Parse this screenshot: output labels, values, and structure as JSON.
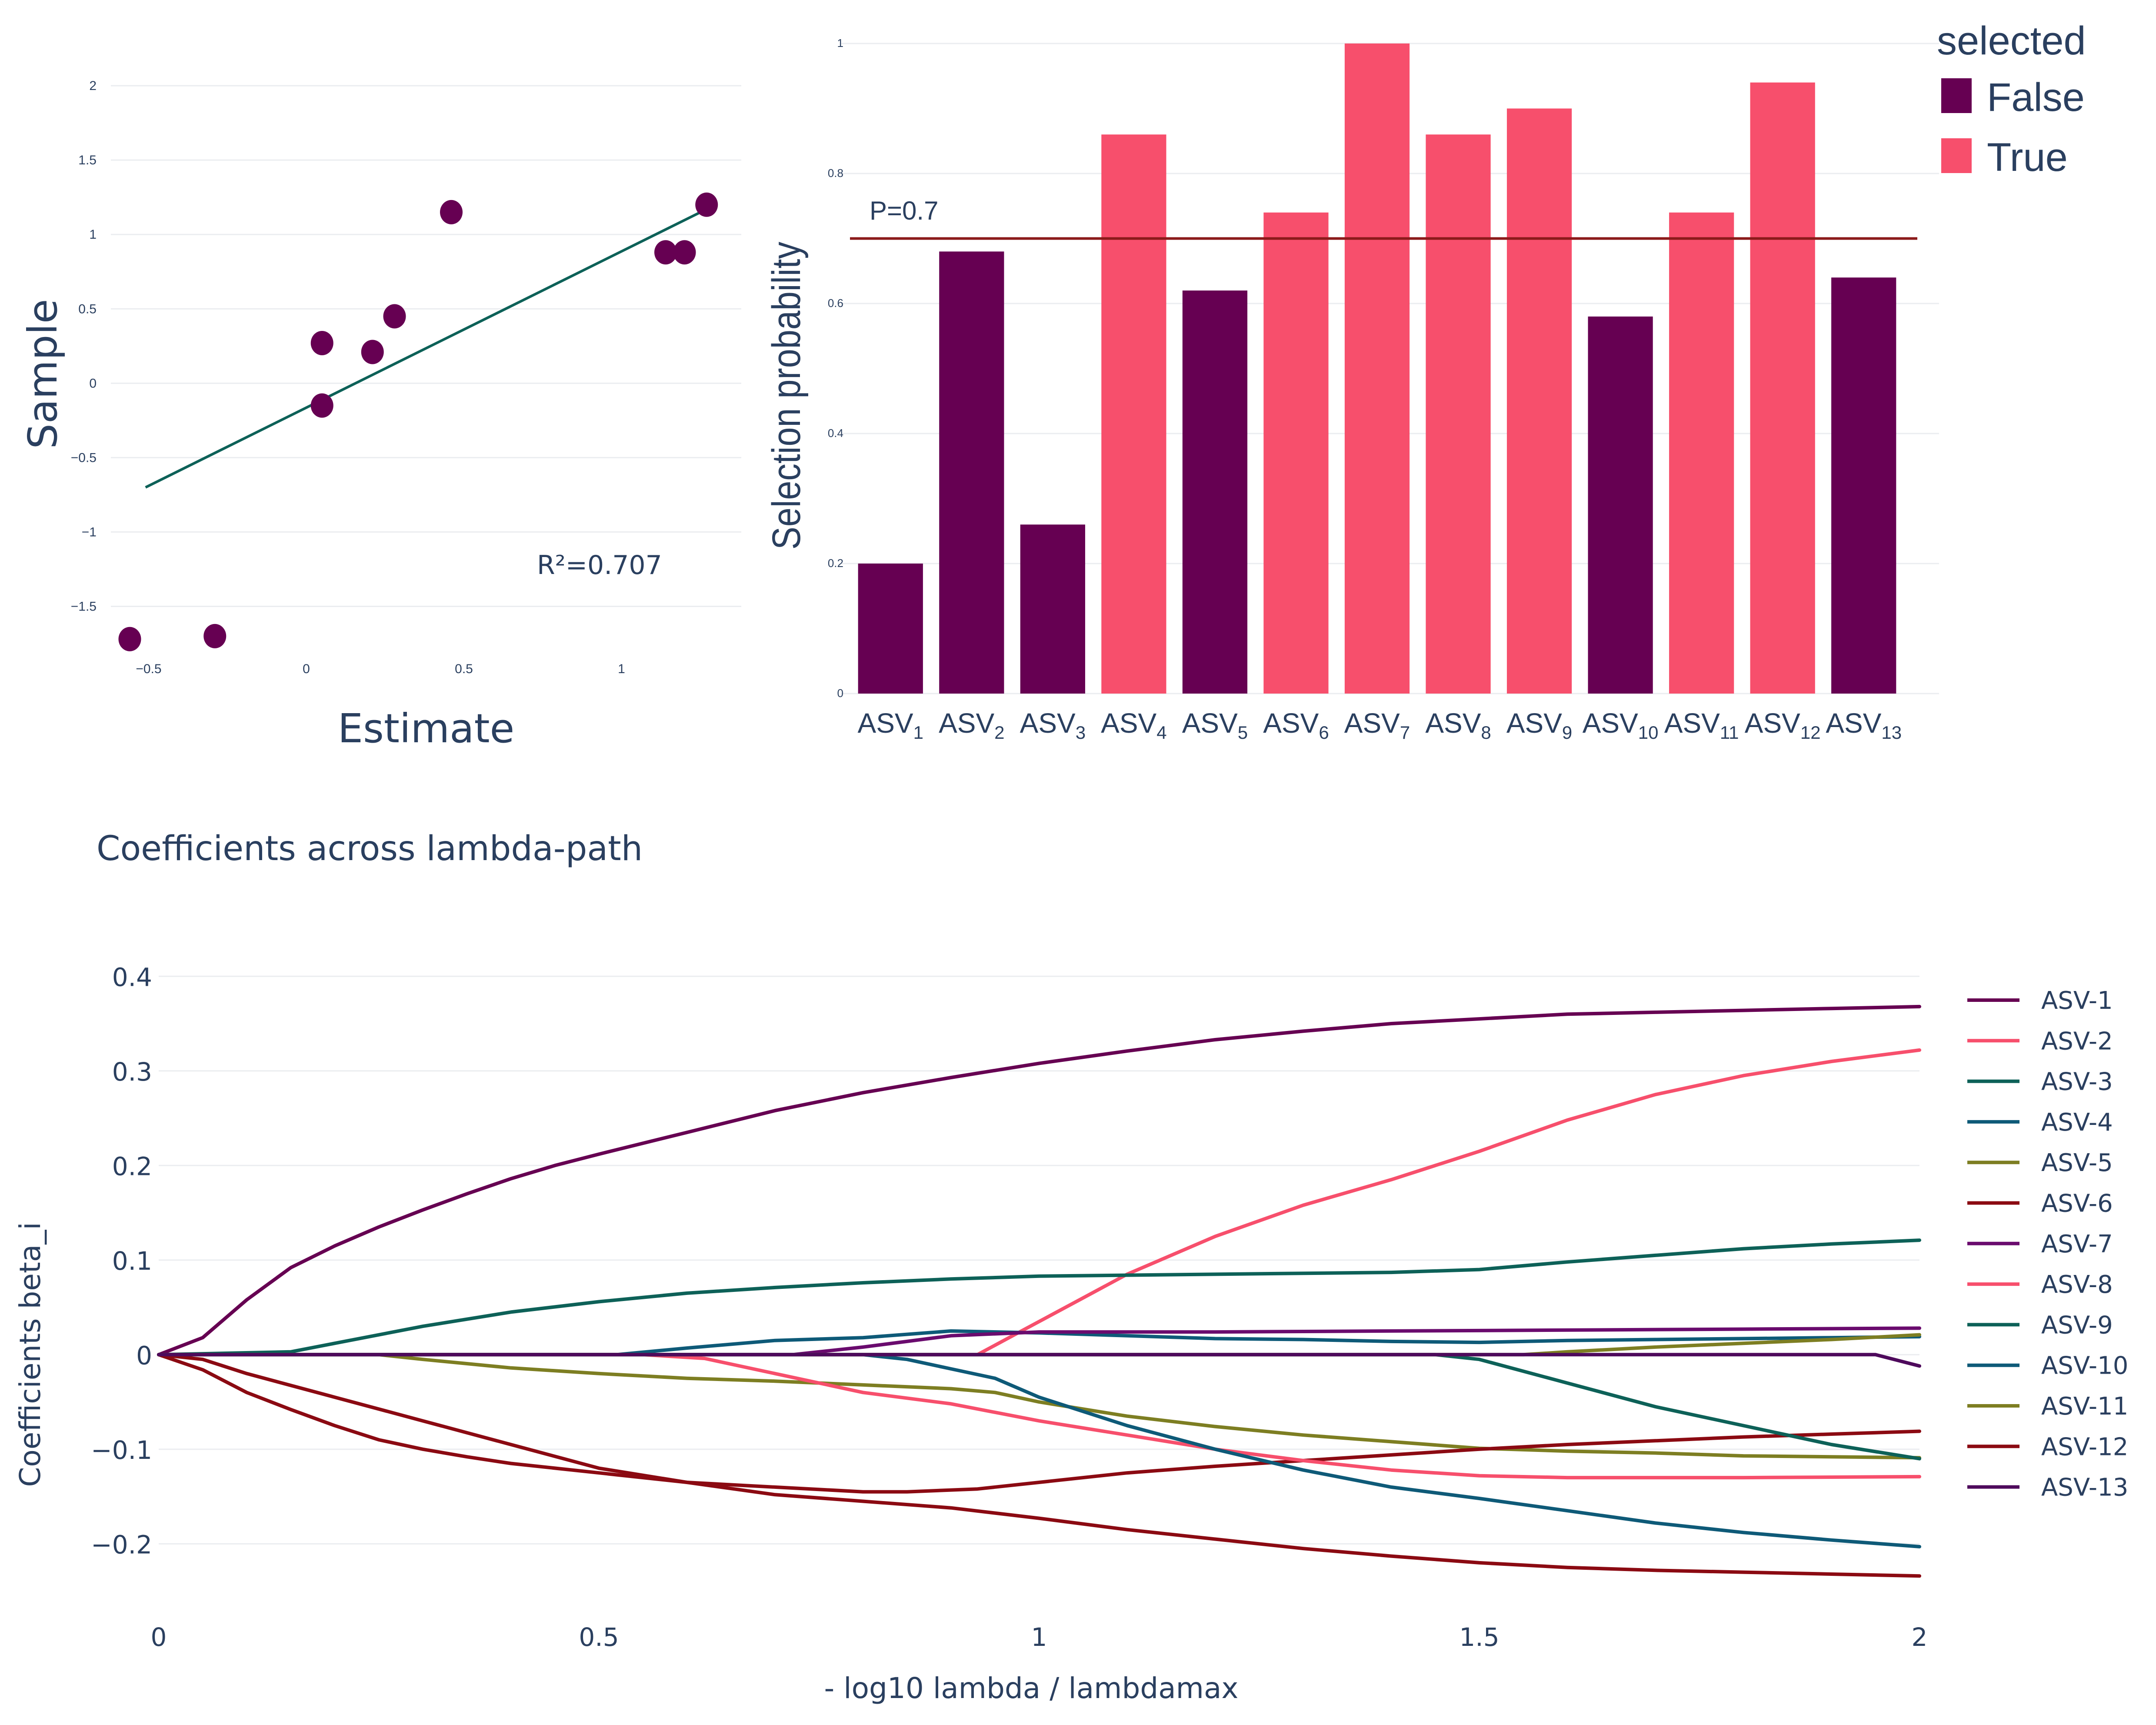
{
  "colors": {
    "purple": "#660052",
    "pink": "#f74f6c",
    "regression": "#0d6158",
    "threshold": "#8b1a1a",
    "text": "#2a3f5f",
    "grid": "#ebedf0"
  },
  "chart_data": [
    {
      "type": "scatter",
      "xlabel": "Estimate",
      "ylabel": "Sample",
      "xlim": [
        -0.62,
        1.38
      ],
      "ylim": [
        -1.75,
        2.05
      ],
      "x_ticks": [
        "−0.5",
        "0",
        "0.5",
        "1"
      ],
      "x_tick_values": [
        -0.5,
        0,
        0.5,
        1
      ],
      "y_ticks": [
        "−1.5",
        "−1",
        "−0.5",
        "0",
        "0.5",
        "1",
        "1.5",
        "2"
      ],
      "y_tick_values": [
        -1.5,
        -1,
        -0.5,
        0,
        0.5,
        1,
        1.5,
        2
      ],
      "points": [
        {
          "x": -0.56,
          "y": -1.72
        },
        {
          "x": -0.29,
          "y": -1.7
        },
        {
          "x": 0.05,
          "y": -0.15
        },
        {
          "x": 0.05,
          "y": 0.27
        },
        {
          "x": 0.21,
          "y": 0.21
        },
        {
          "x": 0.28,
          "y": 0.45
        },
        {
          "x": 0.46,
          "y": 1.15
        },
        {
          "x": 1.14,
          "y": 0.88
        },
        {
          "x": 1.2,
          "y": 0.88
        },
        {
          "x": 1.27,
          "y": 1.2
        }
      ],
      "fit_line": [
        {
          "x": -0.51,
          "y": -0.7
        },
        {
          "x": 1.27,
          "y": 1.17
        }
      ],
      "annotation": "R²=0.707"
    },
    {
      "type": "bar",
      "ylabel": "Selection probability",
      "ylim": [
        0,
        1
      ],
      "y_ticks": [
        "0",
        "0.2",
        "0.4",
        "0.6",
        "0.8",
        "1"
      ],
      "y_tick_values": [
        0,
        0.2,
        0.4,
        0.6,
        0.8,
        1
      ],
      "categories": [
        {
          "base": "ASV",
          "sub": "1"
        },
        {
          "base": "ASV",
          "sub": "2"
        },
        {
          "base": "ASV",
          "sub": "3"
        },
        {
          "base": "ASV",
          "sub": "4"
        },
        {
          "base": "ASV",
          "sub": "5"
        },
        {
          "base": "ASV",
          "sub": "6"
        },
        {
          "base": "ASV",
          "sub": "7"
        },
        {
          "base": "ASV",
          "sub": "8"
        },
        {
          "base": "ASV",
          "sub": "9"
        },
        {
          "base": "ASV",
          "sub": "10"
        },
        {
          "base": "ASV",
          "sub": "11"
        },
        {
          "base": "ASV",
          "sub": "12"
        },
        {
          "base": "ASV",
          "sub": "13"
        }
      ],
      "values": [
        0.2,
        0.68,
        0.26,
        0.86,
        0.62,
        0.74,
        1.0,
        0.86,
        0.9,
        0.58,
        0.74,
        0.94,
        0.64
      ],
      "selected": [
        false,
        false,
        false,
        true,
        false,
        true,
        true,
        true,
        true,
        false,
        true,
        true,
        false
      ],
      "threshold": 0.7,
      "threshold_label": "P=0.7",
      "legend": {
        "title": "selected",
        "placement": "top-right",
        "items": [
          {
            "label": "False",
            "color": "#660052"
          },
          {
            "label": "True",
            "color": "#f74f6c"
          }
        ]
      }
    },
    {
      "type": "line",
      "title": "Coefficients across lambda-path",
      "xlabel": "- log10 lambda / lambdamax",
      "ylabel": "Coefficients beta_i",
      "xlim": [
        0,
        2
      ],
      "ylim": [
        -0.255,
        0.43
      ],
      "x_ticks": [
        "0",
        "0.5",
        "1",
        "1.5",
        "2"
      ],
      "x_tick_values": [
        0,
        0.5,
        1,
        1.5,
        2
      ],
      "y_ticks": [
        "−0.2",
        "−0.1",
        "0",
        "0.1",
        "0.2",
        "0.3",
        "0.4"
      ],
      "y_tick_values": [
        -0.2,
        -0.1,
        0,
        0.1,
        0.2,
        0.3,
        0.4
      ],
      "legend_placement": "right",
      "series": [
        {
          "name": "ASV-1",
          "color": "#660052",
          "points": [
            [
              0,
              0
            ],
            [
              0.05,
              0.018
            ],
            [
              0.1,
              0.058
            ],
            [
              0.15,
              0.092
            ],
            [
              0.2,
              0.115
            ],
            [
              0.25,
              0.135
            ],
            [
              0.3,
              0.153
            ],
            [
              0.35,
              0.17
            ],
            [
              0.4,
              0.186
            ],
            [
              0.45,
              0.2
            ],
            [
              0.5,
              0.212
            ],
            [
              0.6,
              0.235
            ],
            [
              0.7,
              0.258
            ],
            [
              0.8,
              0.277
            ],
            [
              0.9,
              0.293
            ],
            [
              1.0,
              0.308
            ],
            [
              1.1,
              0.321
            ],
            [
              1.2,
              0.333
            ],
            [
              1.3,
              0.342
            ],
            [
              1.4,
              0.35
            ],
            [
              1.5,
              0.355
            ],
            [
              1.6,
              0.36
            ],
            [
              1.7,
              0.362
            ],
            [
              1.8,
              0.364
            ],
            [
              1.9,
              0.366
            ],
            [
              2.0,
              0.368
            ]
          ]
        },
        {
          "name": "ASV-2",
          "color": "#f74f6c",
          "points": [
            [
              0,
              0
            ],
            [
              0.93,
              0
            ],
            [
              0.98,
              0.025
            ],
            [
              1.05,
              0.06
            ],
            [
              1.1,
              0.085
            ],
            [
              1.2,
              0.125
            ],
            [
              1.3,
              0.158
            ],
            [
              1.4,
              0.185
            ],
            [
              1.5,
              0.215
            ],
            [
              1.6,
              0.248
            ],
            [
              1.7,
              0.275
            ],
            [
              1.8,
              0.295
            ],
            [
              1.9,
              0.31
            ],
            [
              2.0,
              0.322
            ]
          ]
        },
        {
          "name": "ASV-3",
          "color": "#0d6158",
          "points": [
            [
              0,
              0
            ],
            [
              0.15,
              0.003
            ],
            [
              0.2,
              0.012
            ],
            [
              0.3,
              0.03
            ],
            [
              0.4,
              0.045
            ],
            [
              0.5,
              0.056
            ],
            [
              0.6,
              0.065
            ],
            [
              0.7,
              0.071
            ],
            [
              0.8,
              0.076
            ],
            [
              0.9,
              0.08
            ],
            [
              1.0,
              0.083
            ],
            [
              1.2,
              0.085
            ],
            [
              1.4,
              0.087
            ],
            [
              1.5,
              0.09
            ],
            [
              1.6,
              0.098
            ],
            [
              1.7,
              0.105
            ],
            [
              1.8,
              0.112
            ],
            [
              1.9,
              0.117
            ],
            [
              2.0,
              0.121
            ]
          ]
        },
        {
          "name": "ASV-4",
          "color": "#0e5a78",
          "points": [
            [
              0,
              0
            ],
            [
              0.52,
              0
            ],
            [
              0.6,
              0.007
            ],
            [
              0.7,
              0.015
            ],
            [
              0.8,
              0.018
            ],
            [
              0.9,
              0.025
            ],
            [
              1.0,
              0.023
            ],
            [
              1.1,
              0.02
            ],
            [
              1.2,
              0.017
            ],
            [
              1.3,
              0.016
            ],
            [
              1.4,
              0.014
            ],
            [
              1.5,
              0.013
            ],
            [
              1.6,
              0.015
            ],
            [
              1.7,
              0.016
            ],
            [
              1.8,
              0.017
            ],
            [
              1.9,
              0.018
            ],
            [
              2.0,
              0.019
            ]
          ]
        },
        {
          "name": "ASV-5",
          "color": "#7d7e22",
          "points": [
            [
              0,
              0
            ],
            [
              0.25,
              0
            ],
            [
              0.3,
              -0.005
            ],
            [
              0.4,
              -0.014
            ],
            [
              0.5,
              -0.02
            ],
            [
              0.6,
              -0.025
            ],
            [
              0.7,
              -0.028
            ],
            [
              0.8,
              -0.032
            ],
            [
              0.9,
              -0.036
            ],
            [
              0.95,
              -0.04
            ],
            [
              1.0,
              -0.05
            ],
            [
              1.1,
              -0.065
            ],
            [
              1.2,
              -0.076
            ],
            [
              1.3,
              -0.085
            ],
            [
              1.4,
              -0.092
            ],
            [
              1.5,
              -0.099
            ],
            [
              1.6,
              -0.102
            ],
            [
              1.7,
              -0.104
            ],
            [
              1.8,
              -0.107
            ],
            [
              1.9,
              -0.108
            ],
            [
              2.0,
              -0.109
            ]
          ]
        },
        {
          "name": "ASV-6",
          "color": "#8b0a12",
          "points": [
            [
              0,
              0
            ],
            [
              0.05,
              -0.016
            ],
            [
              0.1,
              -0.04
            ],
            [
              0.15,
              -0.058
            ],
            [
              0.2,
              -0.075
            ],
            [
              0.25,
              -0.09
            ],
            [
              0.3,
              -0.1
            ],
            [
              0.35,
              -0.108
            ],
            [
              0.4,
              -0.115
            ],
            [
              0.5,
              -0.125
            ],
            [
              0.6,
              -0.135
            ],
            [
              0.7,
              -0.14
            ],
            [
              0.8,
              -0.145
            ],
            [
              0.85,
              -0.145
            ],
            [
              0.93,
              -0.142
            ],
            [
              1.0,
              -0.135
            ],
            [
              1.1,
              -0.125
            ],
            [
              1.2,
              -0.118
            ],
            [
              1.3,
              -0.112
            ],
            [
              1.4,
              -0.106
            ],
            [
              1.5,
              -0.1
            ],
            [
              1.6,
              -0.095
            ],
            [
              1.7,
              -0.091
            ],
            [
              1.8,
              -0.087
            ],
            [
              1.9,
              -0.084
            ],
            [
              2.0,
              -0.081
            ]
          ]
        },
        {
          "name": "ASV-7",
          "color": "#6a0b6e",
          "points": [
            [
              0,
              0
            ],
            [
              0.72,
              0
            ],
            [
              0.8,
              0.008
            ],
            [
              0.9,
              0.02
            ],
            [
              1.0,
              0.024
            ],
            [
              1.2,
              0.024
            ],
            [
              1.4,
              0.025
            ],
            [
              1.6,
              0.026
            ],
            [
              1.8,
              0.027
            ],
            [
              2.0,
              0.028
            ]
          ]
        },
        {
          "name": "ASV-8",
          "color": "#f74f6c",
          "points": [
            [
              0,
              0
            ],
            [
              0.55,
              0
            ],
            [
              0.62,
              -0.004
            ],
            [
              0.7,
              -0.02
            ],
            [
              0.8,
              -0.04
            ],
            [
              0.9,
              -0.052
            ],
            [
              1.0,
              -0.07
            ],
            [
              1.1,
              -0.085
            ],
            [
              1.2,
              -0.1
            ],
            [
              1.3,
              -0.112
            ],
            [
              1.4,
              -0.122
            ],
            [
              1.5,
              -0.128
            ],
            [
              1.6,
              -0.13
            ],
            [
              1.8,
              -0.13
            ],
            [
              2.0,
              -0.129
            ]
          ]
        },
        {
          "name": "ASV-9",
          "color": "#0d6158",
          "points": [
            [
              0,
              0
            ],
            [
              1.45,
              0
            ],
            [
              1.5,
              -0.005
            ],
            [
              1.6,
              -0.03
            ],
            [
              1.7,
              -0.055
            ],
            [
              1.8,
              -0.075
            ],
            [
              1.9,
              -0.095
            ],
            [
              2.0,
              -0.11
            ]
          ]
        },
        {
          "name": "ASV-10",
          "color": "#0e5a78",
          "points": [
            [
              0,
              0
            ],
            [
              0.8,
              0
            ],
            [
              0.85,
              -0.005
            ],
            [
              0.9,
              -0.015
            ],
            [
              0.95,
              -0.025
            ],
            [
              1.0,
              -0.045
            ],
            [
              1.1,
              -0.075
            ],
            [
              1.2,
              -0.1
            ],
            [
              1.3,
              -0.122
            ],
            [
              1.4,
              -0.14
            ],
            [
              1.5,
              -0.152
            ],
            [
              1.6,
              -0.165
            ],
            [
              1.7,
              -0.178
            ],
            [
              1.8,
              -0.188
            ],
            [
              1.9,
              -0.196
            ],
            [
              2.0,
              -0.203
            ]
          ]
        },
        {
          "name": "ASV-11",
          "color": "#7d7e22",
          "points": [
            [
              0,
              0
            ],
            [
              1.55,
              0
            ],
            [
              1.6,
              0.003
            ],
            [
              1.7,
              0.008
            ],
            [
              1.8,
              0.012
            ],
            [
              1.9,
              0.016
            ],
            [
              2.0,
              0.021
            ]
          ]
        },
        {
          "name": "ASV-12",
          "color": "#8b0a12",
          "points": [
            [
              0,
              0
            ],
            [
              0.05,
              -0.005
            ],
            [
              0.1,
              -0.02
            ],
            [
              0.2,
              -0.045
            ],
            [
              0.3,
              -0.07
            ],
            [
              0.4,
              -0.095
            ],
            [
              0.5,
              -0.12
            ],
            [
              0.6,
              -0.135
            ],
            [
              0.7,
              -0.148
            ],
            [
              0.8,
              -0.155
            ],
            [
              0.9,
              -0.162
            ],
            [
              1.0,
              -0.173
            ],
            [
              1.1,
              -0.185
            ],
            [
              1.2,
              -0.195
            ],
            [
              1.3,
              -0.205
            ],
            [
              1.4,
              -0.213
            ],
            [
              1.5,
              -0.22
            ],
            [
              1.6,
              -0.225
            ],
            [
              1.7,
              -0.228
            ],
            [
              1.8,
              -0.23
            ],
            [
              1.9,
              -0.232
            ],
            [
              2.0,
              -0.234
            ]
          ]
        },
        {
          "name": "ASV-13",
          "color": "#4e0a5c",
          "points": [
            [
              0,
              0
            ],
            [
              1.9,
              0
            ],
            [
              1.95,
              0
            ],
            [
              2.0,
              -0.012
            ]
          ]
        }
      ]
    }
  ]
}
